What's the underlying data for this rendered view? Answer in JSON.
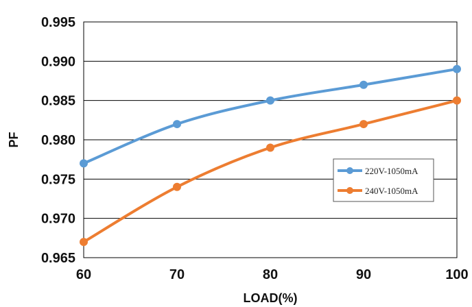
{
  "chart_data": {
    "type": "line",
    "title": "",
    "xlabel": "LOAD(%)",
    "ylabel": "PF",
    "x": [
      60,
      70,
      80,
      90,
      100
    ],
    "xlim": [
      60,
      100
    ],
    "ylim": [
      0.965,
      0.995
    ],
    "yticks": [
      "0.965",
      "0.970",
      "0.975",
      "0.980",
      "0.985",
      "0.990",
      "0.995"
    ],
    "xticks": [
      "60",
      "70",
      "80",
      "90",
      "100"
    ],
    "grid": "horizontal",
    "legend_position": "right",
    "series": [
      {
        "name": "220V-1050mA",
        "color": "#5B9BD5",
        "values": [
          0.977,
          0.982,
          0.985,
          0.987,
          0.989
        ]
      },
      {
        "name": "240V-1050mA",
        "color": "#ED7D31",
        "values": [
          0.967,
          0.974,
          0.979,
          0.982,
          0.985
        ]
      }
    ]
  }
}
